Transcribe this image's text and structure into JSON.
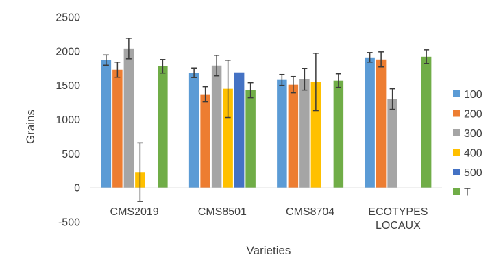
{
  "chart_data": {
    "type": "bar",
    "xlabel": "Varieties",
    "ylabel": "Grains",
    "ylim": [
      -500,
      2500
    ],
    "yticks": [
      "2500",
      "2000",
      "1500",
      "1000",
      "500",
      "0",
      "-500"
    ],
    "ytick_values": [
      2500,
      2000,
      1500,
      1000,
      500,
      0,
      -500
    ],
    "grid": false,
    "legend_position": "right",
    "categories": [
      {
        "lines": [
          "CMS2019"
        ]
      },
      {
        "lines": [
          "CMS8501"
        ]
      },
      {
        "lines": [
          "CMS8704"
        ]
      },
      {
        "lines": [
          "ECOTYPES",
          "LOCAUX"
        ]
      }
    ],
    "series": [
      {
        "name": "100",
        "color": "#5B9BD5",
        "values": [
          1870,
          1685,
          1580,
          1910
        ],
        "errors": [
          75,
          70,
          80,
          70
        ]
      },
      {
        "name": "200",
        "color": "#ED7D31",
        "values": [
          1730,
          1370,
          1510,
          1880
        ],
        "errors": [
          110,
          110,
          120,
          110
        ]
      },
      {
        "name": "300",
        "color": "#A5A5A5",
        "values": [
          2040,
          1790,
          1590,
          1300
        ],
        "errors": [
          150,
          150,
          160,
          150
        ]
      },
      {
        "name": "400",
        "color": "#FFC000",
        "values": [
          230,
          1450,
          1550,
          null
        ],
        "errors": [
          430,
          420,
          420,
          null
        ]
      },
      {
        "name": "500",
        "color": "#4472C4",
        "values": [
          null,
          1690,
          null,
          null
        ],
        "errors": [
          null,
          null,
          null,
          null
        ]
      },
      {
        "name": "T",
        "color": "#70AD47",
        "values": [
          1780,
          1430,
          1570,
          1920
        ],
        "errors": [
          100,
          110,
          100,
          100
        ]
      }
    ]
  }
}
